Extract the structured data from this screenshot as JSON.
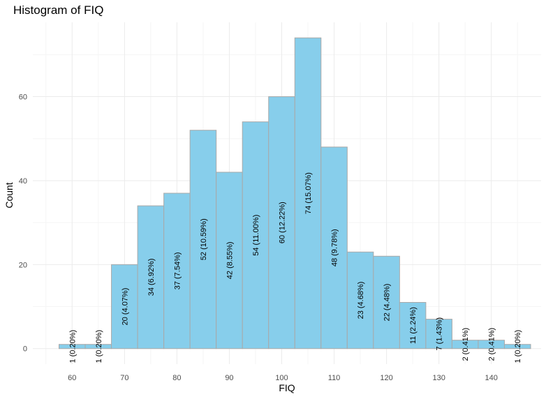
{
  "chart_data": {
    "type": "bar",
    "title": "Histogram of FIQ",
    "xlabel": "FIQ",
    "ylabel": "Count",
    "bin_width": 5,
    "bin_centers": [
      60,
      65,
      70,
      75,
      80,
      85,
      90,
      95,
      100,
      105,
      110,
      115,
      120,
      125,
      130,
      135,
      140,
      145
    ],
    "values": [
      1,
      1,
      20,
      34,
      37,
      52,
      42,
      54,
      60,
      74,
      48,
      23,
      22,
      11,
      7,
      2,
      2,
      1
    ],
    "labels": [
      "1 (0.20%)",
      "1 (0.20%)",
      "20 (4.07%)",
      "34 (6.92%)",
      "37 (7.54%)",
      "52 (10.59%)",
      "42 (8.55%)",
      "54 (11.00%)",
      "60 (12.22%)",
      "74 (15.07%)",
      "48 (9.78%)",
      "23 (4.68%)",
      "22 (4.48%)",
      "11 (2.24%)",
      "7 (1.43%)",
      "2 (0.41%)",
      "2 (0.41%)",
      "1 (0.20%)"
    ],
    "xlim": [
      52.5,
      149.5
    ],
    "ylim": [
      -3.7,
      77.7
    ],
    "x_ticks": [
      60,
      70,
      80,
      90,
      100,
      110,
      120,
      130,
      140
    ],
    "x_tick_labels": [
      "60",
      "70",
      "80",
      "90",
      "100",
      "110",
      "120",
      "130",
      "140"
    ],
    "y_ticks": [
      0,
      20,
      40,
      60
    ],
    "y_tick_labels": [
      "0",
      "20",
      "40",
      "60"
    ],
    "grid": true,
    "legend": "none",
    "colors": {
      "bar_fill": "#87CEEB",
      "bar_stroke": "#a9a9a9",
      "grid_major": "#ebebeb",
      "grid_minor": "#f5f5f5"
    }
  }
}
